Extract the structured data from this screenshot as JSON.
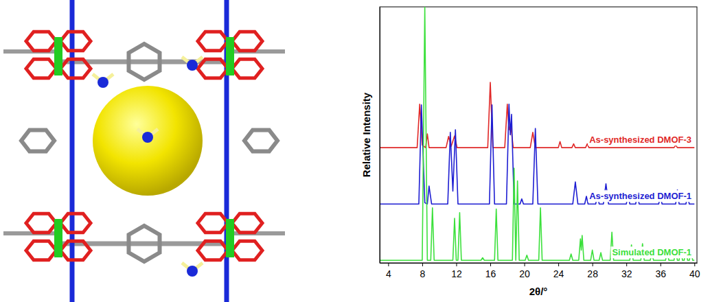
{
  "chart_data": {
    "type": "line",
    "x_label": "2θ/°",
    "y_label": "Relative Intensity",
    "xlim": [
      3,
      40.3
    ],
    "ylim": [
      0,
      100
    ],
    "xticks": [
      4,
      8,
      12,
      16,
      20,
      24,
      28,
      32,
      36,
      40
    ],
    "tick_labels": "x",
    "series": [
      {
        "name": "As-synthesized DMOF-3",
        "color": "#e02828",
        "x": [
          3,
          7.4,
          7.7,
          8.0,
          8.4,
          8.6,
          8.8,
          10.8,
          11.1,
          11.4,
          11.8,
          12.1,
          15.7,
          16.0,
          16.3,
          17.7,
          18.0,
          18.2,
          18.4,
          18.7,
          20.7,
          21.0,
          21.3,
          24.0,
          24.2,
          24.4,
          25.6,
          25.8,
          26.0,
          27.2,
          27.4,
          27.6,
          37.6,
          37.8,
          38.0,
          40
        ],
        "values": [
          45,
          45,
          62,
          46,
          45,
          50.4,
          45,
          45,
          49.4,
          45.5,
          49.6,
          45,
          45,
          70.5,
          45,
          45,
          62,
          52,
          54,
          45,
          45,
          51,
          45,
          45,
          47.4,
          45,
          45,
          46.5,
          45,
          45,
          46.5,
          45,
          45,
          46,
          45,
          45
        ]
      },
      {
        "name": "As-synthesized DMOF-1",
        "color": "#1e1ed2",
        "x": [
          3,
          7.6,
          7.9,
          8.3,
          8.6,
          8.8,
          9.1,
          11.0,
          11.3,
          11.6,
          11.9,
          12.2,
          15.9,
          16.2,
          16.5,
          17.9,
          18.2,
          18.35,
          18.5,
          18.8,
          19.5,
          19.7,
          19.9,
          21.0,
          21.3,
          21.6,
          25.7,
          26.0,
          26.3,
          27.1,
          27.3,
          27.5,
          28.4,
          28.6,
          28.8,
          29.3,
          29.6,
          29.9,
          32.0,
          32.2,
          32.4,
          33.1,
          33.3,
          33.5,
          35.8,
          36.0,
          36.2,
          37.8,
          38.0,
          38.2,
          39.0,
          39.2,
          39.4,
          40
        ],
        "values": [
          23,
          23,
          61.7,
          23.5,
          23,
          30,
          23,
          23,
          51,
          28,
          52,
          23,
          23,
          61.7,
          23,
          23,
          62,
          50,
          58,
          23,
          23,
          25,
          23,
          23,
          52.5,
          23,
          23,
          31.6,
          23,
          23,
          26,
          23,
          23,
          27,
          23,
          23,
          30.9,
          23,
          23,
          27,
          23,
          23,
          27.5,
          23,
          23,
          26,
          23,
          23,
          28.5,
          23,
          23,
          26,
          23,
          23
        ]
      },
      {
        "name": "Simulated DMOF-1",
        "color": "#3ce03c",
        "x": [
          3,
          8.0,
          8.3,
          8.6,
          9.0,
          9.2,
          9.4,
          11.6,
          11.8,
          12.0,
          12.2,
          12.4,
          12.6,
          14.9,
          15.1,
          15.3,
          16.5,
          16.7,
          16.9,
          18.6,
          18.8,
          19.0,
          19.2,
          19.4,
          20.1,
          20.3,
          20.5,
          21.7,
          21.9,
          22.1,
          25.3,
          25.5,
          25.7,
          26.4,
          26.6,
          26.7,
          26.8,
          27.0,
          27.8,
          28.0,
          28.2,
          28.8,
          29.0,
          29.2,
          30.1,
          30.3,
          30.5,
          32.4,
          32.6,
          32.8,
          33.7,
          33.9,
          34.1,
          34.8,
          35.0,
          35.2,
          36.6,
          36.8,
          37.0,
          37.6,
          37.8,
          38.0,
          38.2,
          38.4,
          38.6,
          38.8,
          39.0,
          39.2,
          39.4,
          39.6,
          39.8,
          40
        ],
        "values": [
          1,
          1,
          100,
          1,
          1,
          21.5,
          1,
          1,
          17.4,
          1,
          1,
          19.6,
          1,
          1,
          2,
          1,
          1,
          21,
          1,
          1,
          37,
          1,
          32,
          1,
          1,
          3,
          1,
          1,
          21.5,
          1,
          1,
          3.5,
          1,
          1,
          9.4,
          5,
          10.7,
          1,
          1,
          5,
          1,
          1,
          4,
          1,
          1,
          12,
          1,
          1,
          7,
          1,
          1,
          7.5,
          1,
          1,
          3.5,
          1,
          1,
          4,
          1,
          1,
          5,
          1,
          1,
          6,
          1,
          1,
          5,
          1,
          1,
          4.6,
          1,
          1
        ]
      }
    ]
  }
}
